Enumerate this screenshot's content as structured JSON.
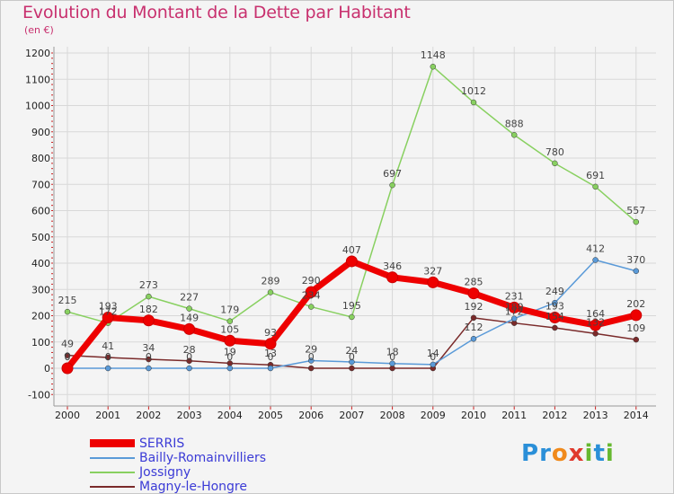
{
  "title": "Evolution du Montant de la Dette par Habitant",
  "unit": "(en €)",
  "logo": {
    "letters": [
      "P",
      "r",
      "o",
      "x",
      "i",
      "t",
      "i"
    ],
    "colors": [
      "#2a8fd8",
      "#2a8fd8",
      "#f08a1c",
      "#e03a2e",
      "#66b830",
      "#2a8fd8",
      "#66b830"
    ]
  },
  "chart_data": {
    "type": "line",
    "title": "Evolution du Montant de la Dette par Habitant",
    "ylabel": "(en €)",
    "x": [
      "2000",
      "2001",
      "2002",
      "2003",
      "2004",
      "2005",
      "2006",
      "2007",
      "2008",
      "2009",
      "2010",
      "2011",
      "2012",
      "2013",
      "2014"
    ],
    "yticks": [
      "1200",
      "1100",
      "1000",
      "900",
      "800",
      "700",
      "600",
      "500",
      "400",
      "300",
      "200",
      "100",
      "0",
      "-100"
    ],
    "ylim": [
      -100,
      1200
    ],
    "series": [
      {
        "name": "SERRIS",
        "color": "#ee0000",
        "width": 7,
        "marker": 6,
        "values": [
          0,
          193,
          182,
          149,
          105,
          93,
          290,
          407,
          346,
          327,
          285,
          231,
          193,
          164,
          202
        ],
        "labels": [
          "0",
          "193",
          "182",
          "149",
          "105",
          "93",
          "290",
          "407",
          "346",
          "327",
          "285",
          "231",
          "193",
          "164",
          "202"
        ]
      },
      {
        "name": "Bailly-Romainvilliers",
        "color": "#5a9ad8",
        "width": 1.5,
        "marker": 3,
        "values": [
          0,
          0,
          0,
          0,
          0,
          0,
          29,
          24,
          18,
          14,
          112,
          189,
          249,
          412,
          370
        ],
        "labels": [
          "0",
          "0",
          "0",
          "0",
          "0",
          "0",
          "29",
          "24",
          "18",
          "14",
          "112",
          "189",
          "249",
          "412",
          "370"
        ]
      },
      {
        "name": "Jossigny",
        "color": "#88d060",
        "width": 1.5,
        "marker": 3,
        "values": [
          215,
          172,
          273,
          227,
          179,
          289,
          234,
          195,
          697,
          1148,
          1012,
          888,
          780,
          691,
          557
        ],
        "labels": [
          "215",
          "172",
          "273",
          "227",
          "179",
          "289",
          "234",
          "195",
          "697",
          "1148",
          "1012",
          "888",
          "780",
          "691",
          "557"
        ]
      },
      {
        "name": "Magny-le-Hongre",
        "color": "#7a2a2a",
        "width": 1.5,
        "marker": 3,
        "values": [
          49,
          41,
          34,
          28,
          19,
          13,
          0,
          0,
          0,
          0,
          192,
          172,
          154,
          132,
          109
        ],
        "labels": [
          "49",
          "41",
          "34",
          "28",
          "19",
          "13",
          "0",
          "0",
          "0",
          "0",
          "192",
          "172",
          "154",
          "132",
          "109"
        ]
      }
    ]
  }
}
